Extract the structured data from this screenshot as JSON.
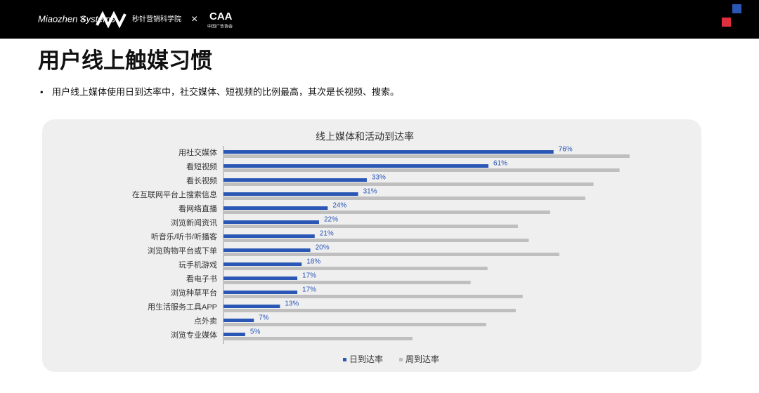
{
  "header": {
    "brand": "Miaozhen Systems",
    "institute": "秒针营销科学院",
    "partner": "CAA",
    "partner_name": "中国广告协会"
  },
  "page_title": "用户线上触媒习惯",
  "bullet": "用户线上媒体使用日到达率中，社交媒体、短视频的比例最高，其次是长视频、搜索。",
  "chart_data": {
    "type": "bar",
    "orientation": "horizontal",
    "title": "线上媒体和活动到达率",
    "categories": [
      "用社交媒体",
      "看短视频",
      "看长视频",
      "在互联网平台上搜索信息",
      "看网络直播",
      "浏览新闻资讯",
      "听音乐/听书/听播客",
      "浏览购物平台或下单",
      "玩手机游戏",
      "看电子书",
      "浏览种草平台",
      "用生活服务工具APP",
      "点外卖",
      "浏览专业媒体"
    ],
    "series": [
      {
        "name": "日到达率",
        "color": "#2a56b5",
        "values": [
          76,
          61,
          33,
          31,
          24,
          22,
          21,
          20,
          18,
          17,
          17,
          13,
          7,
          5
        ],
        "value_labels": [
          "76%",
          "61%",
          "33%",
          "31%",
          "24%",
          "22%",
          "21%",
          "20%",
          "18%",
          "17%",
          "17%",
          "13%",
          "7%",
          "5%"
        ]
      },
      {
        "name": "周到达率",
        "color": "#bfbfbf",
        "values": [
          93.5,
          91.2,
          85.2,
          83.3,
          75.2,
          67.8,
          70.3,
          77.3,
          60.8,
          56.9,
          68.9,
          67.3,
          60.5,
          43.5
        ]
      }
    ],
    "xlim": [
      0,
      100
    ],
    "legend": "bottom"
  }
}
